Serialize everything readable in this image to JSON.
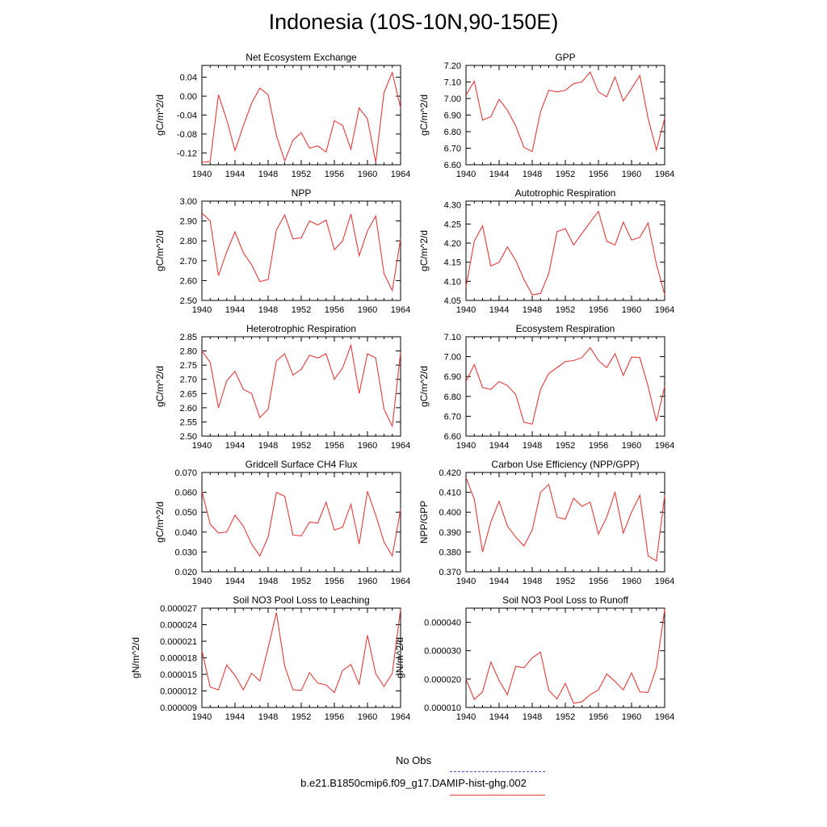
{
  "title": "Indonesia (10S-10N,90-150E)",
  "legend": {
    "obs": {
      "label": "No Obs",
      "color": "#4f4fd0"
    },
    "model": {
      "label": "b.e21.B1850cmip6.f09_g17.DAMIP-hist-ghg.002",
      "color": "#e23b3b"
    }
  },
  "chart_data": [
    {
      "type": "line",
      "title": "Net Ecosystem Exchange",
      "ylabel": "gC/m^2/d",
      "xlim": [
        1940,
        1964
      ],
      "ylim": [
        -0.145,
        0.065
      ],
      "xticks": [
        1940,
        1944,
        1948,
        1952,
        1956,
        1960,
        1964
      ],
      "yticks": [
        0.04,
        0.0,
        -0.04,
        -0.08,
        -0.12
      ],
      "ytick_labels": [
        "0.04",
        "0.00",
        "-0.04",
        "-0.08",
        "-0.12"
      ],
      "x": [
        1940,
        1941,
        1942,
        1943,
        1944,
        1945,
        1946,
        1947,
        1948,
        1949,
        1950,
        1951,
        1952,
        1953,
        1954,
        1955,
        1956,
        1957,
        1958,
        1959,
        1960,
        1961,
        1962,
        1963,
        1964
      ],
      "series": [
        {
          "color": "#e23b3b",
          "values": [
            -0.14,
            -0.138,
            0.003,
            -0.05,
            -0.115,
            -0.063,
            -0.015,
            0.017,
            0.003,
            -0.083,
            -0.137,
            -0.093,
            -0.077,
            -0.11,
            -0.105,
            -0.118,
            -0.052,
            -0.062,
            -0.112,
            -0.025,
            -0.048,
            -0.14,
            0.008,
            0.05,
            -0.025
          ]
        }
      ]
    },
    {
      "type": "line",
      "title": "GPP",
      "ylabel": "gC/m^2/d",
      "xlim": [
        1940,
        1964
      ],
      "ylim": [
        6.6,
        7.2
      ],
      "xticks": [
        1940,
        1944,
        1948,
        1952,
        1956,
        1960,
        1964
      ],
      "yticks": [
        6.6,
        6.7,
        6.8,
        6.9,
        7.0,
        7.1,
        7.2
      ],
      "ytick_labels": [
        "6.60",
        "6.70",
        "6.80",
        "6.90",
        "7.00",
        "7.10",
        "7.20"
      ],
      "x": [
        1940,
        1941,
        1942,
        1943,
        1944,
        1945,
        1946,
        1947,
        1948,
        1949,
        1950,
        1951,
        1952,
        1953,
        1954,
        1955,
        1956,
        1957,
        1958,
        1959,
        1960,
        1961,
        1962,
        1963,
        1964
      ],
      "series": [
        {
          "color": "#e23b3b",
          "values": [
            7.02,
            7.105,
            6.87,
            6.89,
            6.995,
            6.93,
            6.835,
            6.705,
            6.68,
            6.92,
            7.05,
            7.04,
            7.05,
            7.09,
            7.1,
            7.16,
            7.04,
            7.01,
            7.13,
            6.985,
            7.06,
            7.14,
            6.88,
            6.69,
            6.88
          ]
        }
      ]
    },
    {
      "type": "line",
      "title": "NPP",
      "ylabel": "gC/m^2/d",
      "xlim": [
        1940,
        1964
      ],
      "ylim": [
        2.5,
        3.0
      ],
      "xticks": [
        1940,
        1944,
        1948,
        1952,
        1956,
        1960,
        1964
      ],
      "yticks": [
        2.5,
        2.6,
        2.7,
        2.8,
        2.9,
        3.0
      ],
      "ytick_labels": [
        "2.50",
        "2.60",
        "2.70",
        "2.80",
        "2.90",
        "3.00"
      ],
      "x": [
        1940,
        1941,
        1942,
        1943,
        1944,
        1945,
        1946,
        1947,
        1948,
        1949,
        1950,
        1951,
        1952,
        1953,
        1954,
        1955,
        1956,
        1957,
        1958,
        1959,
        1960,
        1961,
        1962,
        1963,
        1964
      ],
      "series": [
        {
          "color": "#e23b3b",
          "values": [
            2.94,
            2.9,
            2.625,
            2.745,
            2.845,
            2.74,
            2.68,
            2.595,
            2.605,
            2.855,
            2.93,
            2.81,
            2.815,
            2.9,
            2.88,
            2.905,
            2.755,
            2.8,
            2.935,
            2.725,
            2.85,
            2.925,
            2.635,
            2.55,
            2.81
          ]
        }
      ]
    },
    {
      "type": "line",
      "title": "Autotrophic Respiration",
      "ylabel": "gC/m^2/d",
      "xlim": [
        1940,
        1964
      ],
      "ylim": [
        4.05,
        4.31
      ],
      "xticks": [
        1940,
        1944,
        1948,
        1952,
        1956,
        1960,
        1964
      ],
      "yticks": [
        4.05,
        4.1,
        4.15,
        4.2,
        4.25,
        4.3
      ],
      "ytick_labels": [
        "4.05",
        "4.10",
        "4.15",
        "4.20",
        "4.25",
        "4.30"
      ],
      "x": [
        1940,
        1941,
        1942,
        1943,
        1944,
        1945,
        1946,
        1947,
        1948,
        1949,
        1950,
        1951,
        1952,
        1953,
        1954,
        1955,
        1956,
        1957,
        1958,
        1959,
        1960,
        1961,
        1962,
        1963,
        1964
      ],
      "series": [
        {
          "color": "#e23b3b",
          "values": [
            4.085,
            4.205,
            4.245,
            4.14,
            4.15,
            4.19,
            4.155,
            4.105,
            4.065,
            4.068,
            4.12,
            4.23,
            4.238,
            4.195,
            4.225,
            4.255,
            4.283,
            4.205,
            4.195,
            4.255,
            4.208,
            4.215,
            4.253,
            4.145,
            4.065
          ]
        }
      ]
    },
    {
      "type": "line",
      "title": "Heterotrophic Respiration",
      "ylabel": "gC/m^2/d",
      "xlim": [
        1940,
        1964
      ],
      "ylim": [
        2.5,
        2.85
      ],
      "xticks": [
        1940,
        1944,
        1948,
        1952,
        1956,
        1960,
        1964
      ],
      "yticks": [
        2.5,
        2.55,
        2.6,
        2.65,
        2.7,
        2.75,
        2.8,
        2.85
      ],
      "ytick_labels": [
        "2.50",
        "2.55",
        "2.60",
        "2.65",
        "2.70",
        "2.75",
        "2.80",
        "2.85"
      ],
      "x": [
        1940,
        1941,
        1942,
        1943,
        1944,
        1945,
        1946,
        1947,
        1948,
        1949,
        1950,
        1951,
        1952,
        1953,
        1954,
        1955,
        1956,
        1957,
        1958,
        1959,
        1960,
        1961,
        1962,
        1963,
        1964
      ],
      "series": [
        {
          "color": "#e23b3b",
          "values": [
            2.8,
            2.76,
            2.6,
            2.695,
            2.728,
            2.665,
            2.65,
            2.565,
            2.595,
            2.765,
            2.79,
            2.715,
            2.735,
            2.785,
            2.775,
            2.79,
            2.7,
            2.74,
            2.82,
            2.65,
            2.79,
            2.775,
            2.595,
            2.535,
            2.795
          ]
        }
      ]
    },
    {
      "type": "line",
      "title": "Ecosystem Respiration",
      "ylabel": "gC/m^2/d",
      "xlim": [
        1940,
        1964
      ],
      "ylim": [
        6.6,
        7.1
      ],
      "xticks": [
        1940,
        1944,
        1948,
        1952,
        1956,
        1960,
        1964
      ],
      "yticks": [
        6.6,
        6.7,
        6.8,
        6.9,
        7.0,
        7.1
      ],
      "ytick_labels": [
        "6.60",
        "6.70",
        "6.80",
        "6.90",
        "7.00",
        "7.10"
      ],
      "x": [
        1940,
        1941,
        1942,
        1943,
        1944,
        1945,
        1946,
        1947,
        1948,
        1949,
        1950,
        1951,
        1952,
        1953,
        1954,
        1955,
        1956,
        1957,
        1958,
        1959,
        1960,
        1961,
        1962,
        1963,
        1964
      ],
      "series": [
        {
          "color": "#e23b3b",
          "values": [
            6.875,
            6.96,
            6.845,
            6.835,
            6.875,
            6.855,
            6.81,
            6.67,
            6.66,
            6.835,
            6.915,
            6.945,
            6.975,
            6.98,
            6.995,
            7.045,
            6.98,
            6.945,
            7.015,
            6.905,
            6.998,
            6.995,
            6.85,
            6.675,
            6.85
          ]
        }
      ]
    },
    {
      "type": "line",
      "title": "Gridcell Surface CH4 Flux",
      "ylabel": "gC/m^2/d",
      "xlim": [
        1940,
        1964
      ],
      "ylim": [
        0.02,
        0.07
      ],
      "xticks": [
        1940,
        1944,
        1948,
        1952,
        1956,
        1960,
        1964
      ],
      "yticks": [
        0.02,
        0.03,
        0.04,
        0.05,
        0.06,
        0.07
      ],
      "ytick_labels": [
        "0.020",
        "0.030",
        "0.040",
        "0.050",
        "0.060",
        "0.070"
      ],
      "x": [
        1940,
        1941,
        1942,
        1943,
        1944,
        1945,
        1946,
        1947,
        1948,
        1949,
        1950,
        1951,
        1952,
        1953,
        1954,
        1955,
        1956,
        1957,
        1958,
        1959,
        1960,
        1961,
        1962,
        1963,
        1964
      ],
      "series": [
        {
          "color": "#e23b3b",
          "values": [
            0.0605,
            0.044,
            0.0395,
            0.04,
            0.0485,
            0.043,
            0.034,
            0.028,
            0.0375,
            0.06,
            0.058,
            0.0385,
            0.038,
            0.045,
            0.0445,
            0.055,
            0.041,
            0.0425,
            0.054,
            0.034,
            0.0605,
            0.0485,
            0.035,
            0.028,
            0.0515
          ]
        }
      ]
    },
    {
      "type": "line",
      "title": "Carbon Use Efficiency (NPP/GPP)",
      "ylabel": "NPP/GPP",
      "xlim": [
        1940,
        1964
      ],
      "ylim": [
        0.37,
        0.42
      ],
      "xticks": [
        1940,
        1944,
        1948,
        1952,
        1956,
        1960,
        1964
      ],
      "yticks": [
        0.37,
        0.38,
        0.39,
        0.4,
        0.41,
        0.42
      ],
      "ytick_labels": [
        "0.370",
        "0.380",
        "0.390",
        "0.400",
        "0.410",
        "0.420"
      ],
      "x": [
        1940,
        1941,
        1942,
        1943,
        1944,
        1945,
        1946,
        1947,
        1948,
        1949,
        1950,
        1951,
        1952,
        1953,
        1954,
        1955,
        1956,
        1957,
        1958,
        1959,
        1960,
        1961,
        1962,
        1963,
        1964
      ],
      "series": [
        {
          "color": "#e23b3b",
          "values": [
            0.4175,
            0.4065,
            0.38,
            0.395,
            0.4055,
            0.393,
            0.3875,
            0.383,
            0.391,
            0.41,
            0.414,
            0.3975,
            0.3965,
            0.407,
            0.403,
            0.405,
            0.389,
            0.3975,
            0.41,
            0.3895,
            0.4,
            0.4085,
            0.378,
            0.3755,
            0.4085
          ]
        }
      ]
    },
    {
      "type": "line",
      "title": "Soil NO3 Pool Loss to Leaching",
      "ylabel": "gN/m^2/d",
      "xlim": [
        1940,
        1964
      ],
      "ylim": [
        9e-06,
        2.7e-05
      ],
      "xticks": [
        1940,
        1944,
        1948,
        1952,
        1956,
        1960,
        1964
      ],
      "yticks": [
        9e-06,
        1.2e-05,
        1.5e-05,
        1.8e-05,
        2.1e-05,
        2.4e-05,
        2.7e-05
      ],
      "ytick_labels": [
        "0.000009",
        "0.000012",
        "0.000015",
        "0.000018",
        "0.000021",
        "0.000024",
        "0.000027"
      ],
      "x": [
        1940,
        1941,
        1942,
        1943,
        1944,
        1945,
        1946,
        1947,
        1948,
        1949,
        1950,
        1951,
        1952,
        1953,
        1954,
        1955,
        1956,
        1957,
        1958,
        1959,
        1960,
        1961,
        1962,
        1963,
        1964
      ],
      "series": [
        {
          "color": "#e23b3b",
          "values": [
            1.93e-05,
            1.27e-05,
            1.22e-05,
            1.67e-05,
            1.48e-05,
            1.22e-05,
            1.52e-05,
            1.38e-05,
            1.98e-05,
            2.62e-05,
            1.65e-05,
            1.22e-05,
            1.21e-05,
            1.53e-05,
            1.34e-05,
            1.31e-05,
            1.17e-05,
            1.57e-05,
            1.68e-05,
            1.32e-05,
            2.21e-05,
            1.51e-05,
            1.28e-05,
            1.52e-05,
            2.68e-05
          ]
        }
      ]
    },
    {
      "type": "line",
      "title": "Soil NO3 Pool Loss to Runoff",
      "ylabel": "gN/m^2/d",
      "xlim": [
        1940,
        1964
      ],
      "ylim": [
        1e-05,
        4.5e-05
      ],
      "xticks": [
        1940,
        1944,
        1948,
        1952,
        1956,
        1960,
        1964
      ],
      "yticks": [
        1e-05,
        2e-05,
        3e-05,
        4e-05
      ],
      "ytick_labels": [
        "0.000010",
        "0.000020",
        "0.000030",
        "0.000040"
      ],
      "x": [
        1940,
        1941,
        1942,
        1943,
        1944,
        1945,
        1946,
        1947,
        1948,
        1949,
        1950,
        1951,
        1952,
        1953,
        1954,
        1955,
        1956,
        1957,
        1958,
        1959,
        1960,
        1961,
        1962,
        1963,
        1964
      ],
      "series": [
        {
          "color": "#e23b3b",
          "values": [
            2e-05,
            1.28e-05,
            1.55e-05,
            2.6e-05,
            1.95e-05,
            1.45e-05,
            2.45e-05,
            2.4e-05,
            2.75e-05,
            2.95e-05,
            1.6e-05,
            1.3e-05,
            1.85e-05,
            1.15e-05,
            1.2e-05,
            1.45e-05,
            1.62e-05,
            2.18e-05,
            1.92e-05,
            1.62e-05,
            2.22e-05,
            1.55e-05,
            1.53e-05,
            2.4e-05,
            4.45e-05
          ]
        }
      ]
    }
  ]
}
